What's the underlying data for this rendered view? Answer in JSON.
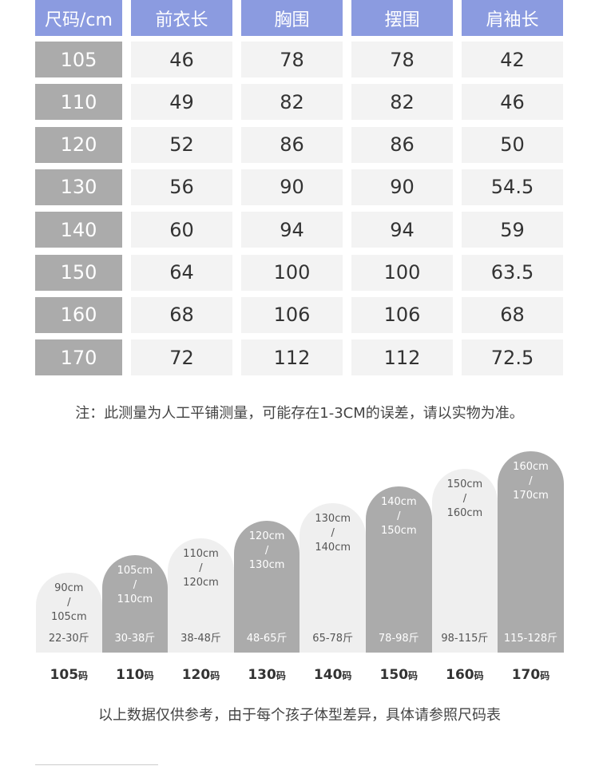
{
  "table": {
    "header": [
      "尺码/cm",
      "前衣长",
      "胸围",
      "摆围",
      "肩袖长"
    ],
    "rows": [
      [
        "105",
        "46",
        "78",
        "78",
        "42"
      ],
      [
        "110",
        "49",
        "82",
        "82",
        "46"
      ],
      [
        "120",
        "52",
        "86",
        "86",
        "50"
      ],
      [
        "130",
        "56",
        "90",
        "90",
        "54.5"
      ],
      [
        "140",
        "60",
        "94",
        "94",
        "59"
      ],
      [
        "150",
        "64",
        "100",
        "100",
        "63.5"
      ],
      [
        "160",
        "68",
        "106",
        "106",
        "68"
      ],
      [
        "170",
        "72",
        "112",
        "112",
        "72.5"
      ]
    ]
  },
  "note": "注：此测量为人工平铺测量，可能存在1-3CM的误差，请以实物为准。",
  "guide": [
    {
      "height": [
        "90cm",
        "/",
        "105cm"
      ],
      "weight": "22-30斤",
      "size": "105",
      "unit": "码"
    },
    {
      "height": [
        "105cm",
        "/",
        "110cm"
      ],
      "weight": "30-38斤",
      "size": "110",
      "unit": "码"
    },
    {
      "height": [
        "110cm",
        "/",
        "120cm"
      ],
      "weight": "38-48斤",
      "size": "120",
      "unit": "码"
    },
    {
      "height": [
        "120cm",
        "/",
        "130cm"
      ],
      "weight": "48-65斤",
      "size": "130",
      "unit": "码"
    },
    {
      "height": [
        "130cm",
        "/",
        "140cm"
      ],
      "weight": "65-78斤",
      "size": "140",
      "unit": "码"
    },
    {
      "height": [
        "140cm",
        "/",
        "150cm"
      ],
      "weight": "78-98斤",
      "size": "150",
      "unit": "码"
    },
    {
      "height": [
        "150cm",
        "/",
        "160cm"
      ],
      "weight": "98-115斤",
      "size": "160",
      "unit": "码"
    },
    {
      "height": [
        "160cm",
        "/",
        "170cm"
      ],
      "weight": "115-128斤",
      "size": "170",
      "unit": "码"
    }
  ],
  "footer": "以上数据仅供参考，由于每个孩子体型差异，具体请参照尺码表"
}
